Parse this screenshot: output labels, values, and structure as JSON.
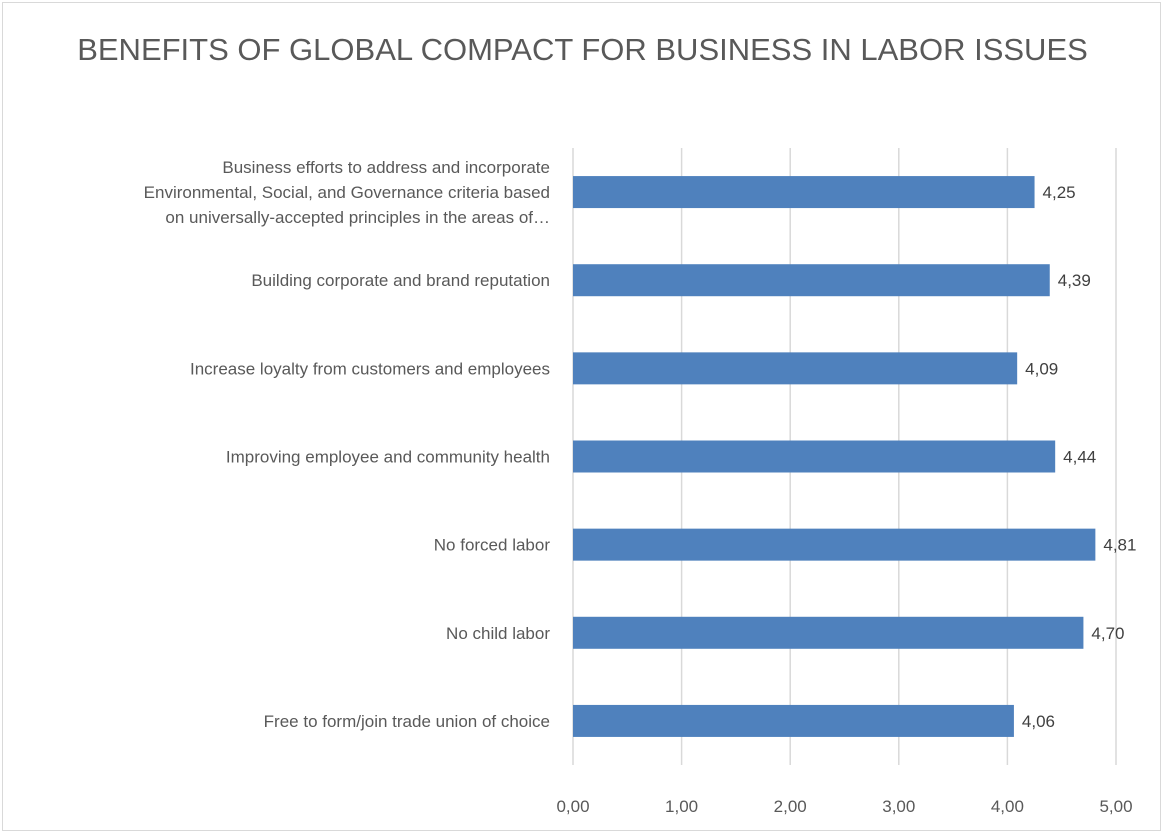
{
  "chart_data": {
    "type": "bar",
    "orientation": "horizontal",
    "title": "BENEFITS OF GLOBAL COMPACT FOR BUSINESS IN LABOR ISSUES",
    "categories": [
      [
        "Business efforts to address and incorporate",
        "Environmental, Social, and Governance criteria based",
        "on universally-accepted principles in the areas of…"
      ],
      [
        "Building corporate and brand reputation"
      ],
      [
        "Increase loyalty from customers and employees"
      ],
      [
        "Improving employee and community health"
      ],
      [
        "No forced labor"
      ],
      [
        "No child labor"
      ],
      [
        "Free to form/join trade union of choice"
      ]
    ],
    "values": [
      4.25,
      4.39,
      4.09,
      4.44,
      4.81,
      4.7,
      4.06
    ],
    "data_labels": [
      "4,25",
      "4,39",
      "4,09",
      "4,44",
      "4,81",
      "4,70",
      "4,06"
    ],
    "xlim": [
      0,
      5
    ],
    "x_ticks": [
      0,
      1,
      2,
      3,
      4,
      5
    ],
    "x_tick_labels": [
      "0,00",
      "1,00",
      "2,00",
      "3,00",
      "4,00",
      "5,00"
    ],
    "grid": true,
    "legend": "none",
    "bar_color": "#4f81bd",
    "grid_color": "#d9d9d9"
  }
}
